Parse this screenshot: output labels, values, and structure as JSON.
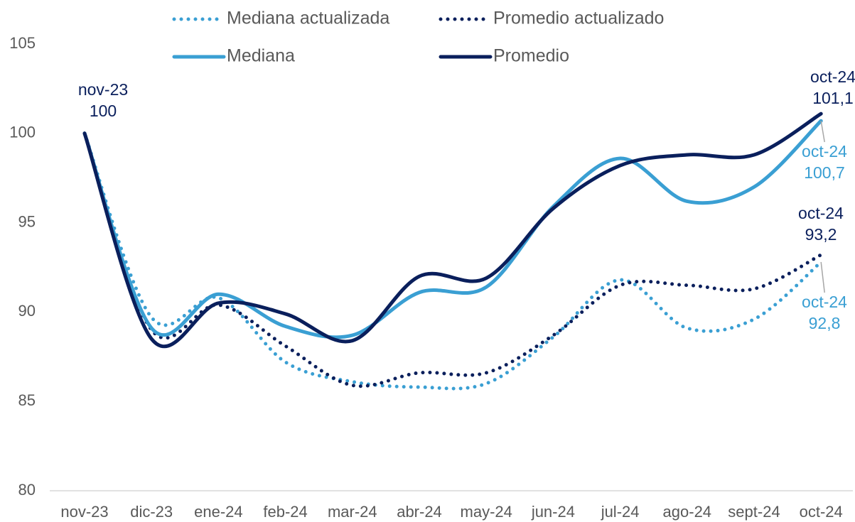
{
  "chart_data": {
    "type": "line",
    "categories": [
      "nov-23",
      "dic-23",
      "ene-24",
      "feb-24",
      "mar-24",
      "abr-24",
      "may-24",
      "jun-24",
      "jul-24",
      "ago-24",
      "sept-24",
      "oct-24"
    ],
    "series": [
      {
        "name": "Mediana actualizada",
        "color": "#3a9fd3",
        "style": "dotted",
        "values": [
          100,
          89.7,
          90.8,
          87.2,
          86.1,
          85.8,
          86.0,
          88.6,
          91.8,
          89.1,
          89.6,
          92.8
        ],
        "value_labels": [
          null,
          null,
          null,
          null,
          null,
          null,
          null,
          null,
          null,
          null,
          null,
          "92,8"
        ]
      },
      {
        "name": "Promedio actualizado",
        "color": "#0a1f5c",
        "style": "dotted",
        "values": [
          100,
          89.0,
          90.4,
          88.1,
          85.9,
          86.6,
          86.6,
          88.7,
          91.5,
          91.5,
          91.3,
          93.2
        ],
        "value_labels": [
          null,
          null,
          null,
          null,
          null,
          null,
          null,
          null,
          null,
          null,
          null,
          "93,2"
        ]
      },
      {
        "name": "Mediana",
        "color": "#3a9fd3",
        "style": "solid",
        "values": [
          100,
          89.1,
          91.0,
          89.2,
          88.7,
          91.1,
          91.4,
          95.9,
          98.6,
          96.2,
          97.0,
          100.7
        ],
        "value_labels": [
          null,
          null,
          null,
          null,
          null,
          null,
          null,
          null,
          null,
          null,
          null,
          "100,7"
        ]
      },
      {
        "name": "Promedio",
        "color": "#0a1f5c",
        "style": "solid",
        "values": [
          100,
          88.5,
          90.5,
          89.9,
          88.4,
          92.0,
          91.9,
          95.8,
          98.2,
          98.8,
          98.8,
          101.1
        ],
        "value_labels": [
          "100",
          null,
          null,
          null,
          null,
          null,
          null,
          null,
          null,
          null,
          null,
          "101,1"
        ]
      }
    ],
    "ylim": [
      80,
      105
    ],
    "yticks": [
      80,
      85,
      90,
      95,
      100,
      105
    ],
    "grid": false
  }
}
